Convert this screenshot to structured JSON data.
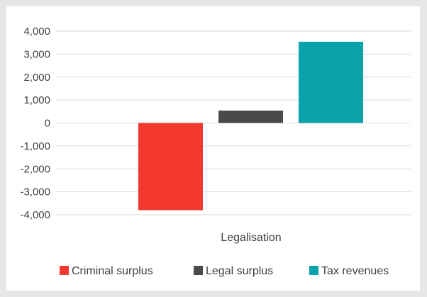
{
  "chart_data": {
    "type": "bar",
    "categories": [
      "Legalisation"
    ],
    "series": [
      {
        "name": "Criminal surplus",
        "values": [
          -3800
        ],
        "color": "#f2382f"
      },
      {
        "name": "Legal surplus",
        "values": [
          540
        ],
        "color": "#4a4a4a"
      },
      {
        "name": "Tax revenues",
        "values": [
          3540
        ],
        "color": "#09a2aa"
      }
    ],
    "yticks": [
      "4,000",
      "3,000",
      "2,000",
      "1,000",
      "0",
      "-1,000",
      "-2,000",
      "-3,000",
      "-4,000"
    ],
    "ytick_values": [
      4000,
      3000,
      2000,
      1000,
      0,
      -1000,
      -2000,
      -3000,
      -4000
    ],
    "ylim": [
      -4000,
      4000
    ],
    "grid": true,
    "legend": "bottom"
  }
}
